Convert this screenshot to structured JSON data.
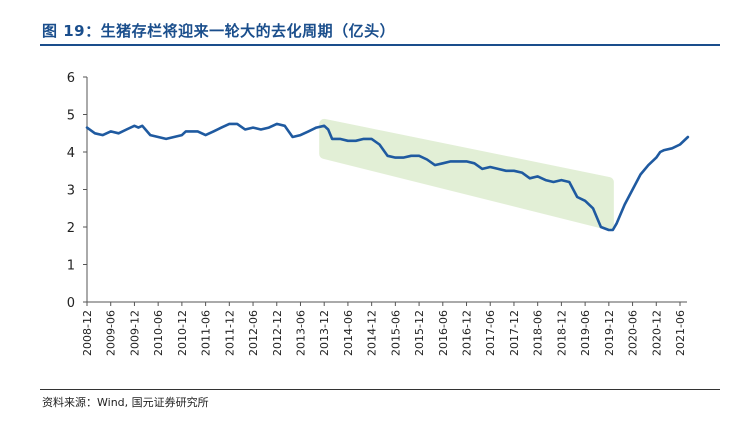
{
  "figure": {
    "title": "图 19：生猪存栏将迎来一轮大的去化周期（亿头）",
    "source": "资料来源：Wind, 国元证券研究所"
  },
  "chart_data": {
    "type": "line",
    "title": "图 19：生猪存栏将迎来一轮大的去化周期（亿头）",
    "xlabel": "",
    "ylabel": "",
    "ylim": [
      0,
      6
    ],
    "yticks": [
      "0",
      "1",
      "2",
      "3",
      "4",
      "5",
      "6"
    ],
    "grid": false,
    "legend": "none",
    "line_color": "#1f5aa0",
    "highlight_color": "#e2efd6",
    "x_tick_labels": [
      "2008-12",
      "2009-06",
      "2009-12",
      "2010-06",
      "2010-12",
      "2011-06",
      "2011-12",
      "2012-06",
      "2012-12",
      "2013-06",
      "2013-12",
      "2014-06",
      "2014-12",
      "2015-06",
      "2015-12",
      "2016-06",
      "2016-12",
      "2017-06",
      "2017-12",
      "2018-06",
      "2018-12",
      "2019-06",
      "2019-12",
      "2020-06",
      "2020-12",
      "2021-06"
    ],
    "series": [
      {
        "points": [
          [
            "2008-12",
            4.65
          ],
          [
            "2009-02",
            4.5
          ],
          [
            "2009-04",
            4.45
          ],
          [
            "2009-06",
            4.55
          ],
          [
            "2009-08",
            4.5
          ],
          [
            "2009-10",
            4.6
          ],
          [
            "2009-12",
            4.7
          ],
          [
            "2010-01",
            4.65
          ],
          [
            "2010-02",
            4.7
          ],
          [
            "2010-04",
            4.45
          ],
          [
            "2010-06",
            4.4
          ],
          [
            "2010-08",
            4.35
          ],
          [
            "2010-10",
            4.4
          ],
          [
            "2010-12",
            4.45
          ],
          [
            "2011-01",
            4.55
          ],
          [
            "2011-04",
            4.55
          ],
          [
            "2011-06",
            4.45
          ],
          [
            "2011-08",
            4.55
          ],
          [
            "2011-10",
            4.65
          ],
          [
            "2011-12",
            4.75
          ],
          [
            "2012-02",
            4.75
          ],
          [
            "2012-04",
            4.6
          ],
          [
            "2012-06",
            4.65
          ],
          [
            "2012-08",
            4.6
          ],
          [
            "2012-10",
            4.65
          ],
          [
            "2012-12",
            4.75
          ],
          [
            "2013-02",
            4.7
          ],
          [
            "2013-04",
            4.4
          ],
          [
            "2013-06",
            4.45
          ],
          [
            "2013-08",
            4.55
          ],
          [
            "2013-10",
            4.65
          ],
          [
            "2013-12",
            4.7
          ],
          [
            "2014-01",
            4.6
          ],
          [
            "2014-02",
            4.35
          ],
          [
            "2014-04",
            4.35
          ],
          [
            "2014-06",
            4.3
          ],
          [
            "2014-08",
            4.3
          ],
          [
            "2014-10",
            4.35
          ],
          [
            "2014-12",
            4.35
          ],
          [
            "2015-02",
            4.2
          ],
          [
            "2015-04",
            3.9
          ],
          [
            "2015-06",
            3.85
          ],
          [
            "2015-08",
            3.85
          ],
          [
            "2015-10",
            3.9
          ],
          [
            "2015-12",
            3.9
          ],
          [
            "2016-02",
            3.8
          ],
          [
            "2016-04",
            3.65
          ],
          [
            "2016-06",
            3.7
          ],
          [
            "2016-08",
            3.75
          ],
          [
            "2016-10",
            3.75
          ],
          [
            "2016-12",
            3.75
          ],
          [
            "2017-02",
            3.7
          ],
          [
            "2017-04",
            3.55
          ],
          [
            "2017-06",
            3.6
          ],
          [
            "2017-08",
            3.55
          ],
          [
            "2017-10",
            3.5
          ],
          [
            "2017-12",
            3.5
          ],
          [
            "2018-02",
            3.45
          ],
          [
            "2018-04",
            3.3
          ],
          [
            "2018-06",
            3.35
          ],
          [
            "2018-08",
            3.25
          ],
          [
            "2018-10",
            3.2
          ],
          [
            "2018-12",
            3.25
          ],
          [
            "2019-02",
            3.2
          ],
          [
            "2019-04",
            2.8
          ],
          [
            "2019-06",
            2.7
          ],
          [
            "2019-08",
            2.5
          ],
          [
            "2019-10",
            2.0
          ],
          [
            "2019-12",
            1.92
          ],
          [
            "2020-01",
            1.92
          ],
          [
            "2020-02",
            2.1
          ],
          [
            "2020-04",
            2.6
          ],
          [
            "2020-06",
            3.0
          ],
          [
            "2020-08",
            3.4
          ],
          [
            "2020-10",
            3.65
          ],
          [
            "2020-12",
            3.85
          ],
          [
            "2021-01",
            4.0
          ],
          [
            "2021-02",
            4.05
          ],
          [
            "2021-04",
            4.1
          ],
          [
            "2021-06",
            4.2
          ],
          [
            "2021-08",
            4.4
          ]
        ]
      }
    ],
    "highlight_band": {
      "x_start": "2013-12",
      "x_end": "2019-12",
      "upper_start": 4.75,
      "upper_end": 3.2,
      "lower_start": 3.95,
      "lower_end": 2.05
    }
  }
}
